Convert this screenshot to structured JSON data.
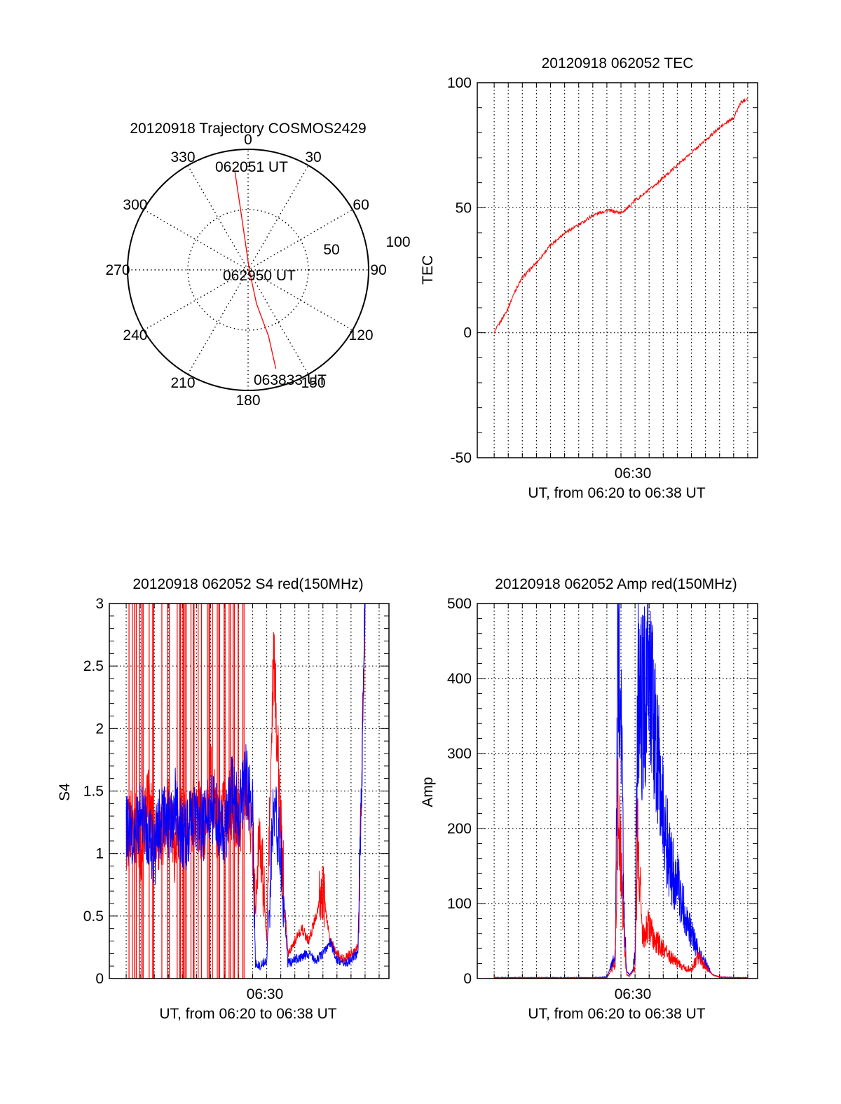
{
  "colors": {
    "red": "#ff0000",
    "blue": "#0000ff",
    "axis": "#000000",
    "grid": "#000000"
  },
  "chart_data": [
    {
      "id": "trajectory",
      "type": "polar",
      "title": "20120918 Trajectory COSMOS2429",
      "angle_labels": [
        "0",
        "30",
        "60",
        "90",
        "120",
        "150",
        "180",
        "210",
        "240",
        "270",
        "300",
        "330"
      ],
      "radial_labels": [
        "50",
        "100"
      ],
      "start_label": "062051 UT",
      "mid_label": "062950 UT",
      "end_label": "063833 UT",
      "trajectory": [
        [
          -11,
          82
        ],
        [
          -7,
          55
        ],
        [
          -3,
          28
        ],
        [
          1,
          0
        ],
        [
          7,
          -28
        ],
        [
          17,
          -55
        ],
        [
          23,
          -82
        ]
      ]
    },
    {
      "id": "tec",
      "type": "line",
      "title": "20120918 062052 TEC",
      "ylabel": "TEC",
      "xlabel": "UT, from 06:20 to 06:38 UT",
      "xtick_label": "06:30",
      "ylim": [
        -50,
        100
      ],
      "yticks": [
        "100",
        "50",
        "0",
        "-50"
      ],
      "series": [
        {
          "name": "",
          "color": "red",
          "x": [
            0,
            0.5,
            1,
            1.5,
            2,
            3,
            4,
            5,
            6,
            7,
            8,
            9,
            9.5,
            10,
            11,
            12,
            13,
            14,
            15,
            16,
            17,
            17.5,
            18
          ],
          "y": [
            0,
            5,
            10,
            17,
            22,
            28,
            35,
            40,
            43,
            47,
            49,
            48,
            50,
            53,
            57,
            62,
            67,
            72,
            77,
            82,
            86,
            92,
            94
          ]
        }
      ]
    },
    {
      "id": "s4",
      "type": "line",
      "title": "20120918 062052 S4 red(150MHz)",
      "ylabel": "S4",
      "xlabel": "UT, from 06:20 to 06:38 UT",
      "xtick_label": "06:30",
      "ylim": [
        0,
        3
      ],
      "yticks": [
        "3",
        "2.5",
        "2",
        "1.5",
        "1",
        "0.5",
        "0"
      ],
      "series": [
        {
          "name": "",
          "color": "red",
          "x": [
            0,
            0.5,
            1,
            1.5,
            2,
            2.5,
            3,
            3.5,
            4,
            4.5,
            5,
            5.5,
            6,
            6.5,
            7,
            7.5,
            8,
            8.5,
            9,
            9.2,
            9.5,
            10,
            10.5,
            11,
            11.5,
            12,
            12.5,
            13,
            13.5,
            14,
            14.5,
            15,
            15.5,
            16,
            16.5,
            17
          ],
          "y": [
            1.1,
            1.3,
            1.0,
            1.4,
            1.2,
            1.1,
            1.5,
            1.0,
            1.3,
            1.2,
            1.4,
            1.1,
            1.6,
            1.2,
            1.3,
            1.4,
            1.2,
            1.6,
            1.1,
            0.5,
            1.2,
            0.3,
            2.6,
            1.2,
            0.2,
            0.3,
            0.4,
            0.3,
            0.5,
            0.7,
            0.3,
            0.2,
            0.15,
            0.2,
            0.25,
            3.0
          ]
        },
        {
          "name": "",
          "color": "blue",
          "x": [
            0,
            0.5,
            1,
            1.5,
            2,
            2.5,
            3,
            3.5,
            4,
            4.5,
            5,
            5.5,
            6,
            6.5,
            7,
            7.5,
            8,
            8.5,
            9,
            9.2,
            9.5,
            10,
            10.5,
            11,
            11.5,
            12,
            12.5,
            13,
            13.5,
            14,
            14.5,
            15,
            15.5,
            16,
            16.5,
            17
          ],
          "y": [
            1.2,
            1.1,
            1.3,
            1.2,
            1.0,
            1.3,
            1.2,
            1.4,
            1.1,
            1.2,
            1.3,
            1.2,
            1.4,
            1.3,
            1.1,
            1.5,
            1.3,
            1.6,
            1.3,
            0.12,
            0.1,
            0.15,
            1.4,
            1.0,
            0.12,
            0.15,
            0.18,
            0.2,
            0.15,
            0.2,
            0.3,
            0.15,
            0.12,
            0.15,
            0.2,
            3.0
          ]
        }
      ]
    },
    {
      "id": "amp",
      "type": "line",
      "title": "20120918 062052 Amp red(150MHz)",
      "ylabel": "Amp",
      "xlabel": "UT, from 06:20 to 06:38 UT",
      "xtick_label": "06:30",
      "ylim": [
        0,
        500
      ],
      "yticks": [
        "500",
        "400",
        "300",
        "200",
        "100",
        "0"
      ],
      "series": [
        {
          "name": "",
          "color": "blue",
          "x": [
            0,
            1,
            2,
            3,
            4,
            5,
            6,
            7,
            8,
            8.6,
            8.8,
            9.0,
            9.2,
            9.4,
            9.6,
            9.8,
            10.0,
            10.2,
            10.5,
            11,
            11.5,
            12,
            12.5,
            13,
            13.5,
            14,
            14.5,
            15,
            15.5,
            16,
            17,
            18
          ],
          "y": [
            1,
            1,
            1,
            1,
            1,
            1,
            1,
            1,
            2,
            30,
            470,
            420,
            100,
            10,
            5,
            10,
            30,
            400,
            360,
            410,
            300,
            220,
            150,
            130,
            90,
            60,
            35,
            20,
            5,
            2,
            1,
            1
          ]
        },
        {
          "name": "",
          "color": "red",
          "x": [
            0,
            1,
            2,
            3,
            4,
            5,
            6,
            7,
            8,
            8.6,
            8.8,
            9.0,
            9.2,
            9.4,
            9.6,
            9.8,
            10.0,
            10.2,
            10.5,
            11,
            11.5,
            12,
            12.5,
            13,
            13.5,
            14,
            14.5,
            15,
            15.5,
            16,
            17,
            18
          ],
          "y": [
            1,
            1,
            1,
            1,
            1,
            1,
            1,
            1,
            1,
            20,
            250,
            150,
            60,
            5,
            3,
            8,
            15,
            200,
            60,
            70,
            50,
            40,
            30,
            20,
            15,
            12,
            30,
            15,
            5,
            2,
            1,
            1
          ]
        }
      ]
    }
  ]
}
